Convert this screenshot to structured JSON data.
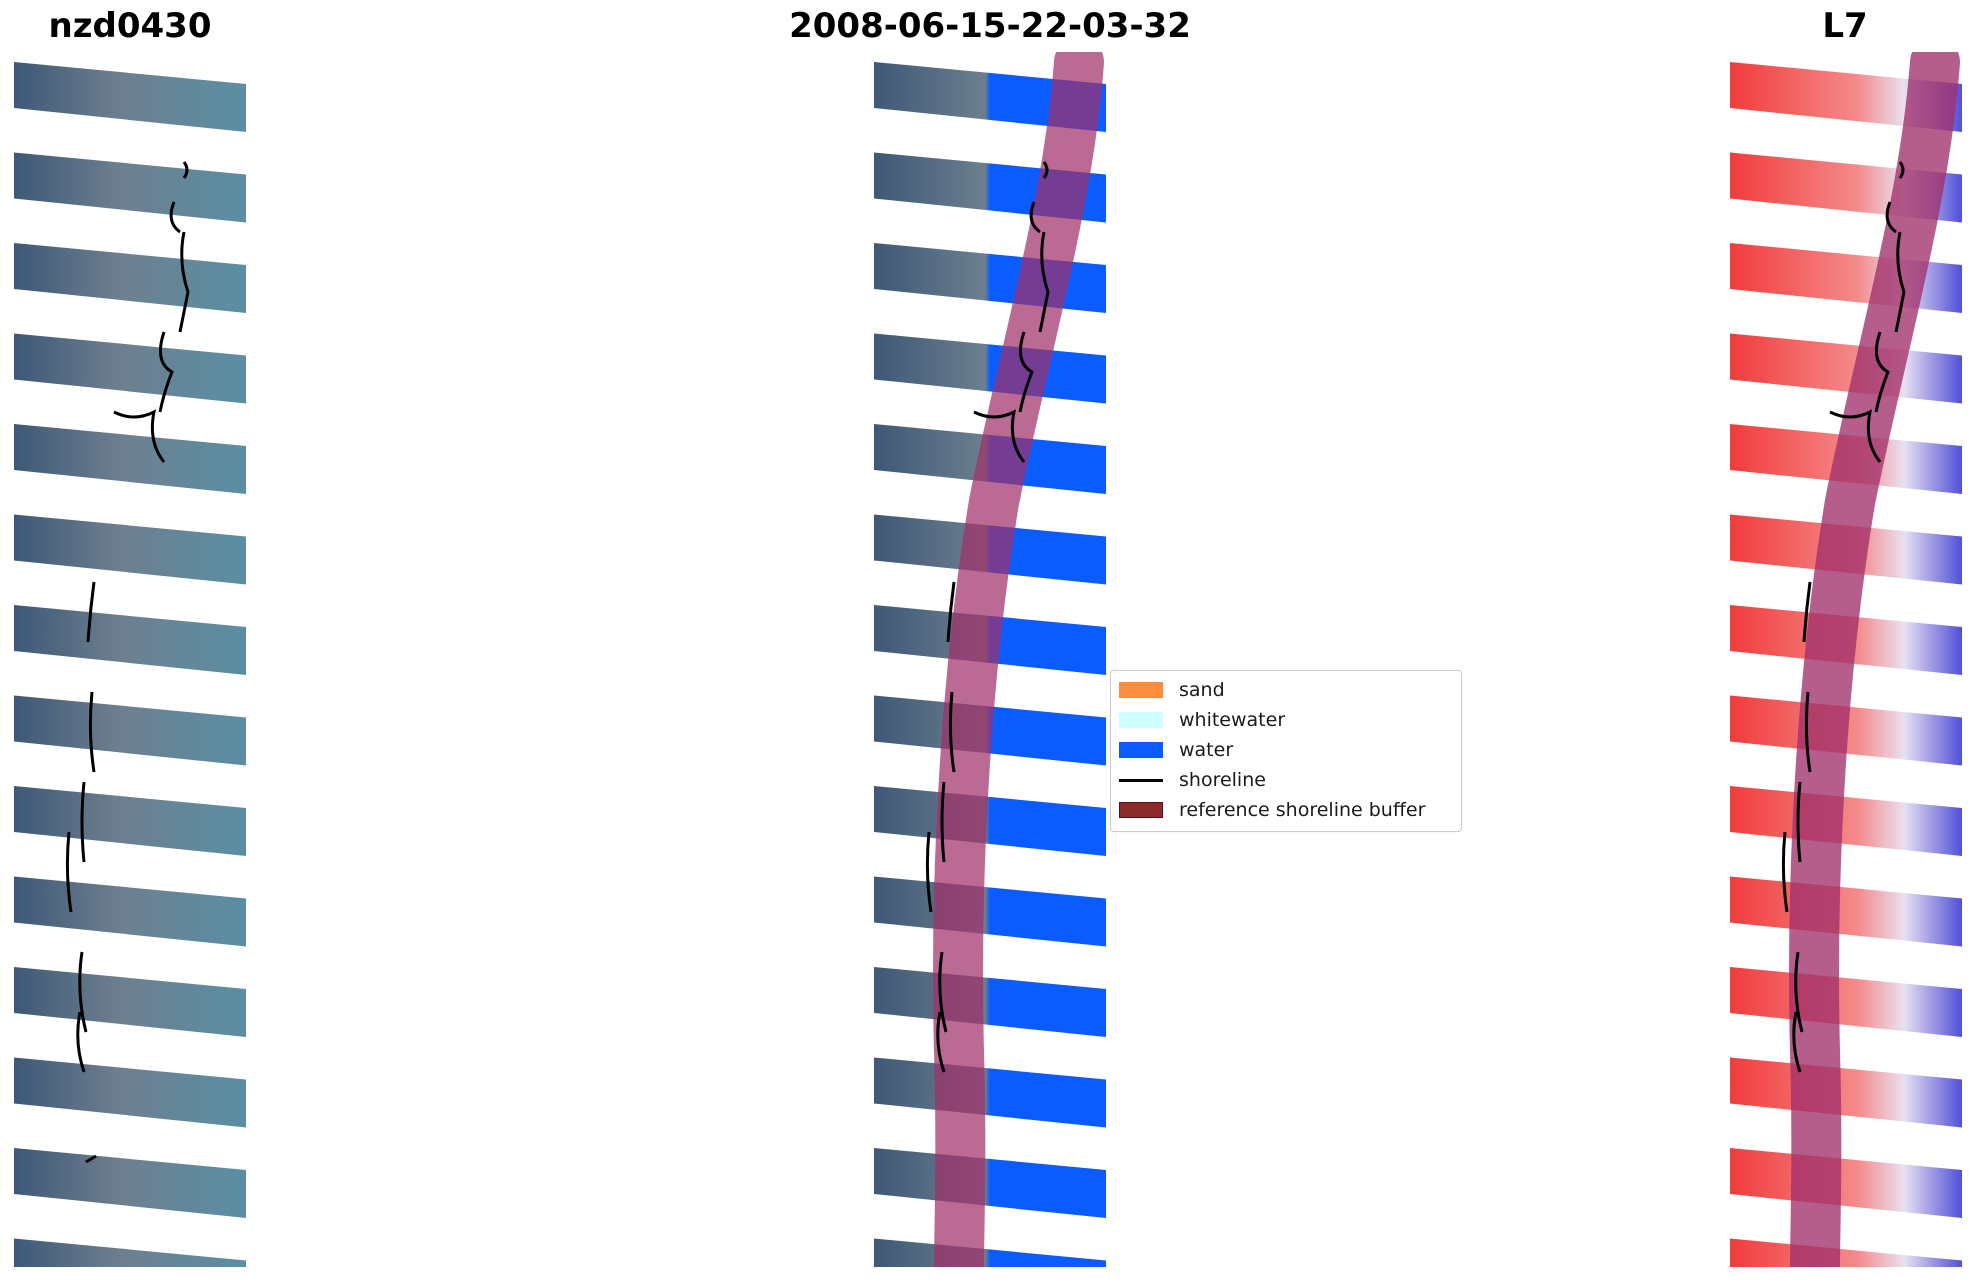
{
  "titles": {
    "left": "nzd0430",
    "center": "2008-06-15-22-03-32",
    "right": "L7"
  },
  "legend": {
    "items": [
      {
        "label": "sand",
        "color": "#ff8c3a",
        "kind": "patch"
      },
      {
        "label": "whitewater",
        "color": "#ccffff",
        "kind": "patch"
      },
      {
        "label": "water",
        "color": "#0a5cff",
        "kind": "patch"
      },
      {
        "label": "shoreline",
        "color": "#000000",
        "kind": "line"
      },
      {
        "label": "reference shoreline buffer",
        "color": "#8b1a1a",
        "kind": "patch"
      }
    ]
  },
  "colors": {
    "buffer_overlay": "#a0306a",
    "water": "#0a5cff",
    "shoreline": "#000000",
    "rgb_land": "#6f7f8d",
    "rgb_sea": "#4d7e95",
    "index_positive": "#f03c3c",
    "index_negative": "#3c3cd8"
  }
}
